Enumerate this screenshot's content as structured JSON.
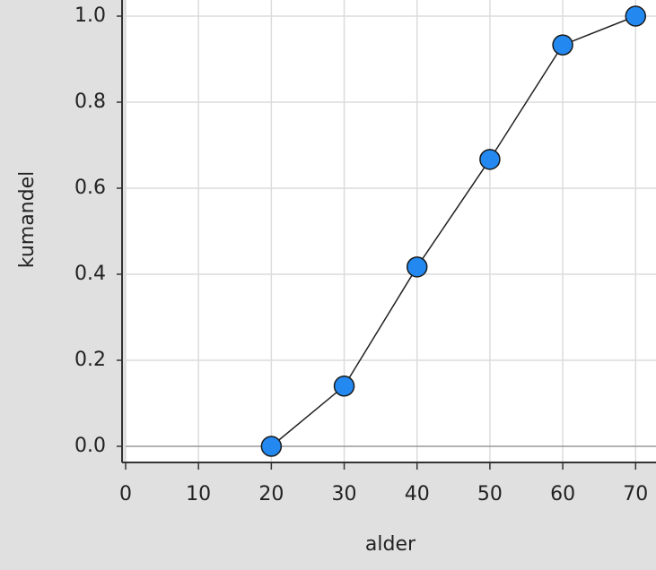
{
  "chart_data": {
    "type": "line",
    "xlabel": "alder",
    "ylabel": "kumandel",
    "x": [
      20,
      30,
      40,
      50,
      60,
      70
    ],
    "series": [
      {
        "color": "#2389f0",
        "values": [
          0,
          0.14,
          0.417,
          0.667,
          0.933,
          1.0
        ]
      }
    ],
    "xlim": [
      0,
      72.8
    ],
    "ylim": [
      -0.0375,
      1.0375
    ],
    "xticks": [
      0,
      10,
      20,
      30,
      40,
      50,
      60,
      70
    ],
    "yticks": [
      {
        "value": 0,
        "label": "0.0"
      },
      {
        "value": 0.2,
        "label": "0.2"
      },
      {
        "value": 0.4,
        "label": "0.4"
      },
      {
        "value": 0.6,
        "label": "0.6"
      },
      {
        "value": 0.8,
        "label": "0.8"
      },
      {
        "value": 1.0,
        "label": "1.0"
      }
    ],
    "grid": true
  }
}
